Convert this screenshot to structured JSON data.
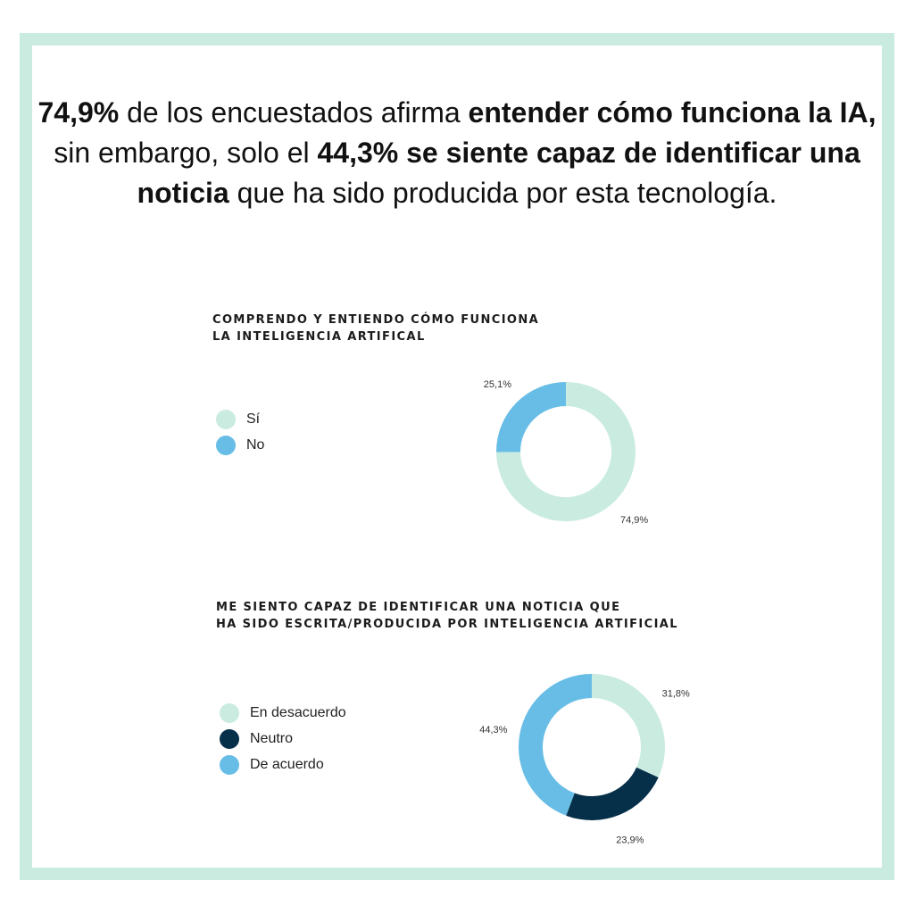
{
  "headline": {
    "s1": "74,9%",
    "s2": " de los encuestados afirma ",
    "s3": "entender cómo funciona la IA,",
    "s4": " sin embargo, solo el ",
    "s5": "44,3% se siente capaz de identificar una noticia",
    "s6": " que ha sido producida por esta tecnología."
  },
  "colors": {
    "frame": "#c9ebe0",
    "mint": "#c9ebe0",
    "sky": "#67bde6",
    "navy": "#06304a"
  },
  "chart_data": [
    {
      "type": "pie",
      "title_lines": [
        "COMPRENDO Y ENTIENDO CÓMO FUNCIONA",
        "LA INTELIGENCIA ARTIFICAL"
      ],
      "legend_placement": "left",
      "slices": [
        {
          "label": "Sí",
          "value": 74.9,
          "value_label": "74,9%",
          "color": "#c9ebe0"
        },
        {
          "label": "No",
          "value": 25.1,
          "value_label": "25,1%",
          "color": "#67bde6"
        }
      ]
    },
    {
      "type": "pie",
      "title_lines": [
        "ME SIENTO CAPAZ DE IDENTIFICAR UNA NOTICIA QUE",
        "HA SIDO ESCRITA/PRODUCIDA POR INTELIGENCIA ARTIFICIAL"
      ],
      "legend_placement": "left",
      "slices": [
        {
          "label": "En desacuerdo",
          "value": 31.8,
          "value_label": "31,8%",
          "color": "#c9ebe0"
        },
        {
          "label": "Neutro",
          "value": 23.9,
          "value_label": "23,9%",
          "color": "#06304a"
        },
        {
          "label": "De acuerdo",
          "value": 44.3,
          "value_label": "44,3%",
          "color": "#67bde6"
        }
      ]
    }
  ]
}
